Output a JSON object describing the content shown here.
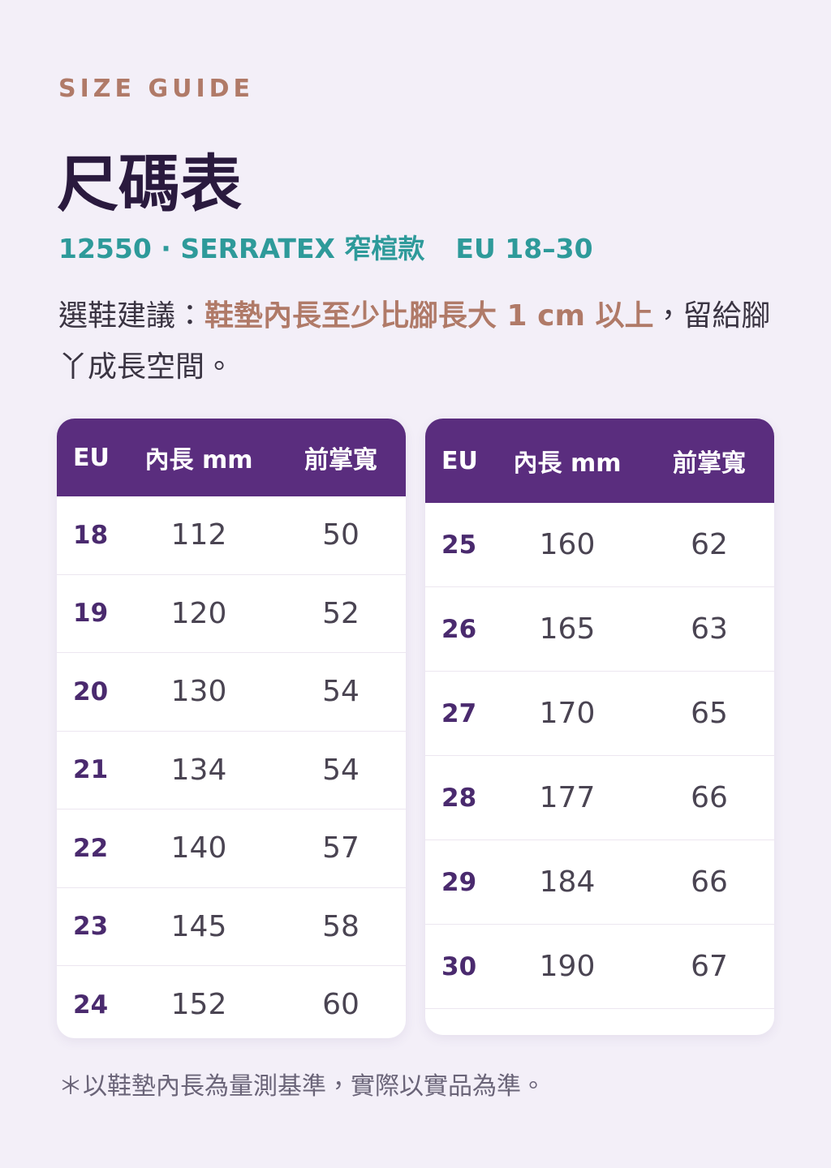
{
  "header": {
    "eyebrow": "SIZE GUIDE",
    "title": "尺碼表",
    "model": "12550 · SERRATEX 窄楦款",
    "range": "EU 18–30"
  },
  "advice": {
    "lead": "選鞋建議：",
    "emphasis": "鞋墊內長至少比腳長大 1 cm 以上",
    "tail": "，留給腳丫成長空間。"
  },
  "tables": [
    {
      "columns": [
        "EU",
        "內長 mm",
        "前掌寬"
      ],
      "rows": [
        [
          18,
          112,
          50
        ],
        [
          19,
          120,
          52
        ],
        [
          20,
          130,
          54
        ],
        [
          21,
          134,
          54
        ],
        [
          22,
          140,
          57
        ],
        [
          23,
          145,
          58
        ],
        [
          24,
          152,
          60
        ]
      ]
    },
    {
      "columns": [
        "EU",
        "內長 mm",
        "前掌寬"
      ],
      "rows": [
        [
          25,
          160,
          62
        ],
        [
          26,
          165,
          63
        ],
        [
          27,
          170,
          65
        ],
        [
          28,
          177,
          66
        ],
        [
          29,
          184,
          66
        ],
        [
          30,
          190,
          67
        ]
      ]
    }
  ],
  "footnote": "＊以鞋墊內長為量測基準，實際以實品為準。"
}
